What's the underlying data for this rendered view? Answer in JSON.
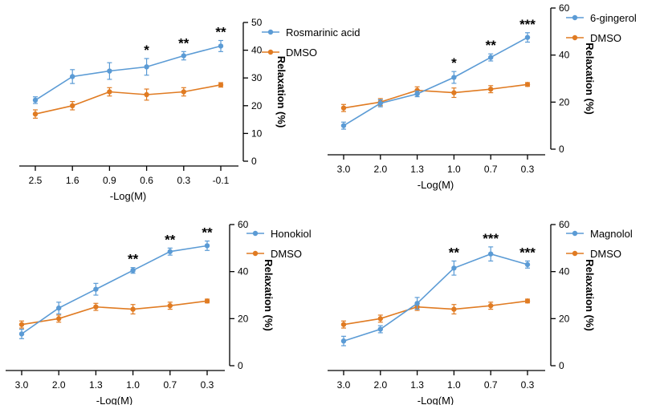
{
  "colors": {
    "blue": "#5b9bd5",
    "orange": "#e07b22",
    "axis": "#000000"
  },
  "chart_data": [
    {
      "type": "line",
      "categories": [
        "2.5",
        "1.6",
        "0.9",
        "0.6",
        "0.3",
        "-0.1"
      ],
      "xlabel": "-Log(M)",
      "ylabel": "Relaxation (%)",
      "ylim": [
        0,
        50
      ],
      "yticks": [
        "0",
        "10",
        "20",
        "30",
        "40",
        "50"
      ],
      "series": [
        {
          "name": "Rosmarinic acid",
          "color": "blue",
          "values": [
            22,
            30.5,
            32.5,
            34,
            38,
            41.5
          ],
          "errors": [
            1.2,
            2.5,
            3,
            3,
            1.5,
            2
          ]
        },
        {
          "name": "DMSO",
          "color": "orange",
          "values": [
            17,
            20,
            25,
            24,
            25,
            27.5
          ],
          "errors": [
            1.5,
            1.5,
            1.5,
            2,
            1.5,
            0.8
          ]
        }
      ],
      "significance": [
        "",
        "",
        "",
        "*",
        "**",
        "**"
      ],
      "legend": "top-right"
    },
    {
      "type": "line",
      "categories": [
        "3.0",
        "2.0",
        "1.3",
        "1.0",
        "0.7",
        "0.3"
      ],
      "xlabel": "-Log(M)",
      "ylabel": "Relaxation (%)",
      "ylim": [
        0,
        60
      ],
      "yticks": [
        "0",
        "20",
        "40",
        "60"
      ],
      "series": [
        {
          "name": "6-gingerol",
          "color": "blue",
          "values": [
            10,
            19.5,
            23.5,
            30.5,
            39,
            47.5
          ],
          "errors": [
            1.5,
            1.5,
            1.2,
            2.5,
            1.5,
            2
          ]
        },
        {
          "name": "DMSO",
          "color": "orange",
          "values": [
            17.5,
            20,
            25,
            24,
            25.5,
            27.5
          ],
          "errors": [
            1.5,
            1.5,
            1.5,
            2,
            1.5,
            0.8
          ]
        }
      ],
      "significance": [
        "",
        "",
        "",
        "*",
        "**",
        "***"
      ],
      "legend": "top-right"
    },
    {
      "type": "line",
      "categories": [
        "3.0",
        "2.0",
        "1.3",
        "1.0",
        "0.7",
        "0.3"
      ],
      "xlabel": "-Log(M)",
      "ylabel": "Relaxation (%)",
      "ylim": [
        0,
        60
      ],
      "yticks": [
        "0",
        "20",
        "40",
        "60"
      ],
      "series": [
        {
          "name": "Honokiol",
          "color": "blue",
          "values": [
            13.5,
            24.5,
            32.5,
            40.5,
            48.5,
            51
          ],
          "errors": [
            2,
            2.5,
            2.5,
            1.2,
            1.5,
            2
          ]
        },
        {
          "name": "DMSO",
          "color": "orange",
          "values": [
            17.5,
            20,
            25,
            24,
            25.5,
            27.5
          ],
          "errors": [
            1.5,
            1.5,
            1.5,
            2,
            1.5,
            0.8
          ]
        }
      ],
      "significance": [
        "",
        "",
        "",
        "**",
        "**",
        "**"
      ],
      "legend": "top-right"
    },
    {
      "type": "line",
      "categories": [
        "3.0",
        "2.0",
        "1.3",
        "1.0",
        "0.7",
        "0.3"
      ],
      "xlabel": "-Log(M)",
      "ylabel": "Relaxation (%)",
      "ylim": [
        0,
        60
      ],
      "yticks": [
        "0",
        "20",
        "40",
        "60"
      ],
      "series": [
        {
          "name": "Magnolol",
          "color": "blue",
          "values": [
            10.5,
            15.5,
            26.5,
            41.5,
            47.5,
            43
          ],
          "errors": [
            2,
            1.5,
            2.5,
            3,
            3,
            1.5
          ]
        },
        {
          "name": "DMSO",
          "color": "orange",
          "values": [
            17.5,
            20,
            25,
            24,
            25.5,
            27.5
          ],
          "errors": [
            1.5,
            1.5,
            1.5,
            2,
            1.5,
            0.8
          ]
        }
      ],
      "significance": [
        "",
        "",
        "",
        "**",
        "***",
        "***"
      ],
      "legend": "top-right"
    }
  ]
}
